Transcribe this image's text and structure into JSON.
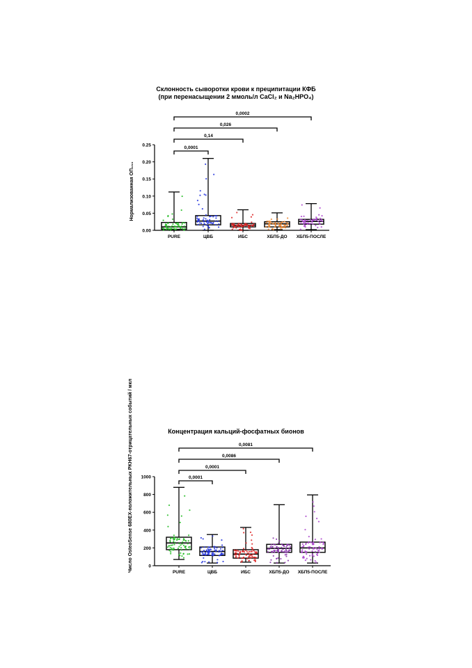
{
  "chart_data": [
    {
      "type": "box",
      "title": "Склонность сыворотки крови к преципитации КФБ",
      "subtitle": "(при перенасыщении 2 ммоль/л CaCl₂ и Na₂HPO₄)",
      "ylabel": "Нормализованная ОП₆₅₀",
      "categories": [
        "PURE",
        "ЦВБ",
        "ИБС",
        "ХБП5-ДО",
        "ХБП5-ПОСЛЕ"
      ],
      "colors": [
        "#22bb22",
        "#2233dd",
        "#dd2222",
        "#ee8833",
        "#aa44cc"
      ],
      "ylim": [
        0,
        0.25
      ],
      "yticks": [
        "0.00",
        "0.05",
        "0.10",
        "0.15",
        "0.20",
        "0.25"
      ],
      "series": [
        {
          "min": 0.0,
          "q1": 0.003,
          "median": 0.01,
          "q3": 0.023,
          "max": 0.112
        },
        {
          "min": 0.0,
          "q1": 0.016,
          "median": 0.027,
          "q3": 0.043,
          "max": 0.21
        },
        {
          "min": 0.0,
          "q1": 0.01,
          "median": 0.015,
          "q3": 0.02,
          "max": 0.06
        },
        {
          "min": 0.002,
          "q1": 0.01,
          "median": 0.019,
          "q3": 0.025,
          "max": 0.051
        },
        {
          "min": 0.002,
          "q1": 0.018,
          "median": 0.026,
          "q3": 0.032,
          "max": 0.078
        }
      ],
      "comparisons": [
        {
          "from": "PURE",
          "to": "ЦВБ",
          "p": "0,0001"
        },
        {
          "from": "PURE",
          "to": "ИБС",
          "p": "0,14"
        },
        {
          "from": "PURE",
          "to": "ХБП5-ДО",
          "p": "0,026"
        },
        {
          "from": "PURE",
          "to": "ХБП5-ПОСЛЕ",
          "p": "0,0002"
        }
      ]
    },
    {
      "type": "box",
      "title": "Концентрация кальций-фосфатных бионов",
      "ylabel": "Число OsteoSense 680EX-положительных PKH67-отрицательных событий / мкл",
      "categories": [
        "PURE",
        "ЦВБ",
        "ИБС",
        "ХБП5-ДО",
        "ХБП5-ПОСЛЕ"
      ],
      "colors": [
        "#22bb22",
        "#2233dd",
        "#dd2222",
        "#8833aa",
        "#aa44cc"
      ],
      "ylim": [
        0,
        1000
      ],
      "yticks": [
        "0",
        "200",
        "400",
        "600",
        "800",
        "1000"
      ],
      "series": [
        {
          "min": 70,
          "q1": 180,
          "median": 255,
          "q3": 320,
          "max": 880
        },
        {
          "min": 30,
          "q1": 115,
          "median": 160,
          "q3": 210,
          "max": 350
        },
        {
          "min": 40,
          "q1": 85,
          "median": 130,
          "q3": 180,
          "max": 430
        },
        {
          "min": 30,
          "q1": 150,
          "median": 195,
          "q3": 240,
          "max": 685
        },
        {
          "min": 30,
          "q1": 150,
          "median": 200,
          "q3": 265,
          "max": 795
        }
      ],
      "comparisons": [
        {
          "from": "PURE",
          "to": "ЦВБ",
          "p": "0,0001"
        },
        {
          "from": "PURE",
          "to": "ИБС",
          "p": "0,0001"
        },
        {
          "from": "PURE",
          "to": "ХБП5-ДО",
          "p": "0,0086"
        },
        {
          "from": "PURE",
          "to": "ХБП5-ПОСЛЕ",
          "p": "0,0081"
        }
      ]
    }
  ]
}
